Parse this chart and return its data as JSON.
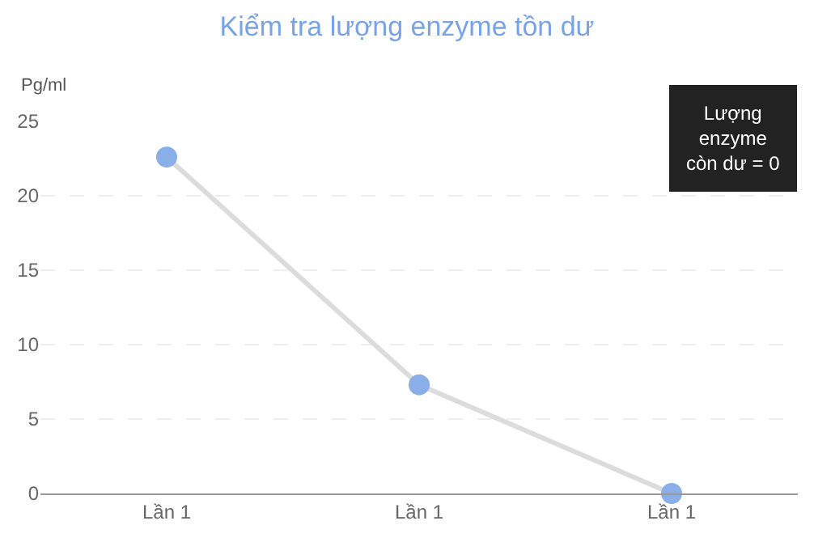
{
  "chart_data": {
    "type": "line",
    "title": "Kiểm tra lượng enzyme tồn dư",
    "ylabel": "Pg/ml",
    "categories": [
      "Lần 1",
      "Lần 1",
      "Lần 1"
    ],
    "series": [
      {
        "color": "#8aaee8",
        "values": [
          22.6,
          7.3,
          0
        ]
      }
    ],
    "ylim": [
      0,
      25
    ],
    "yticks": [
      0,
      5,
      10,
      15,
      20,
      25
    ],
    "grid": "y",
    "marker": "circle",
    "line_style": "solid",
    "annotations": [
      "Lượng\nenzyme\ncòn dư = 0"
    ]
  }
}
